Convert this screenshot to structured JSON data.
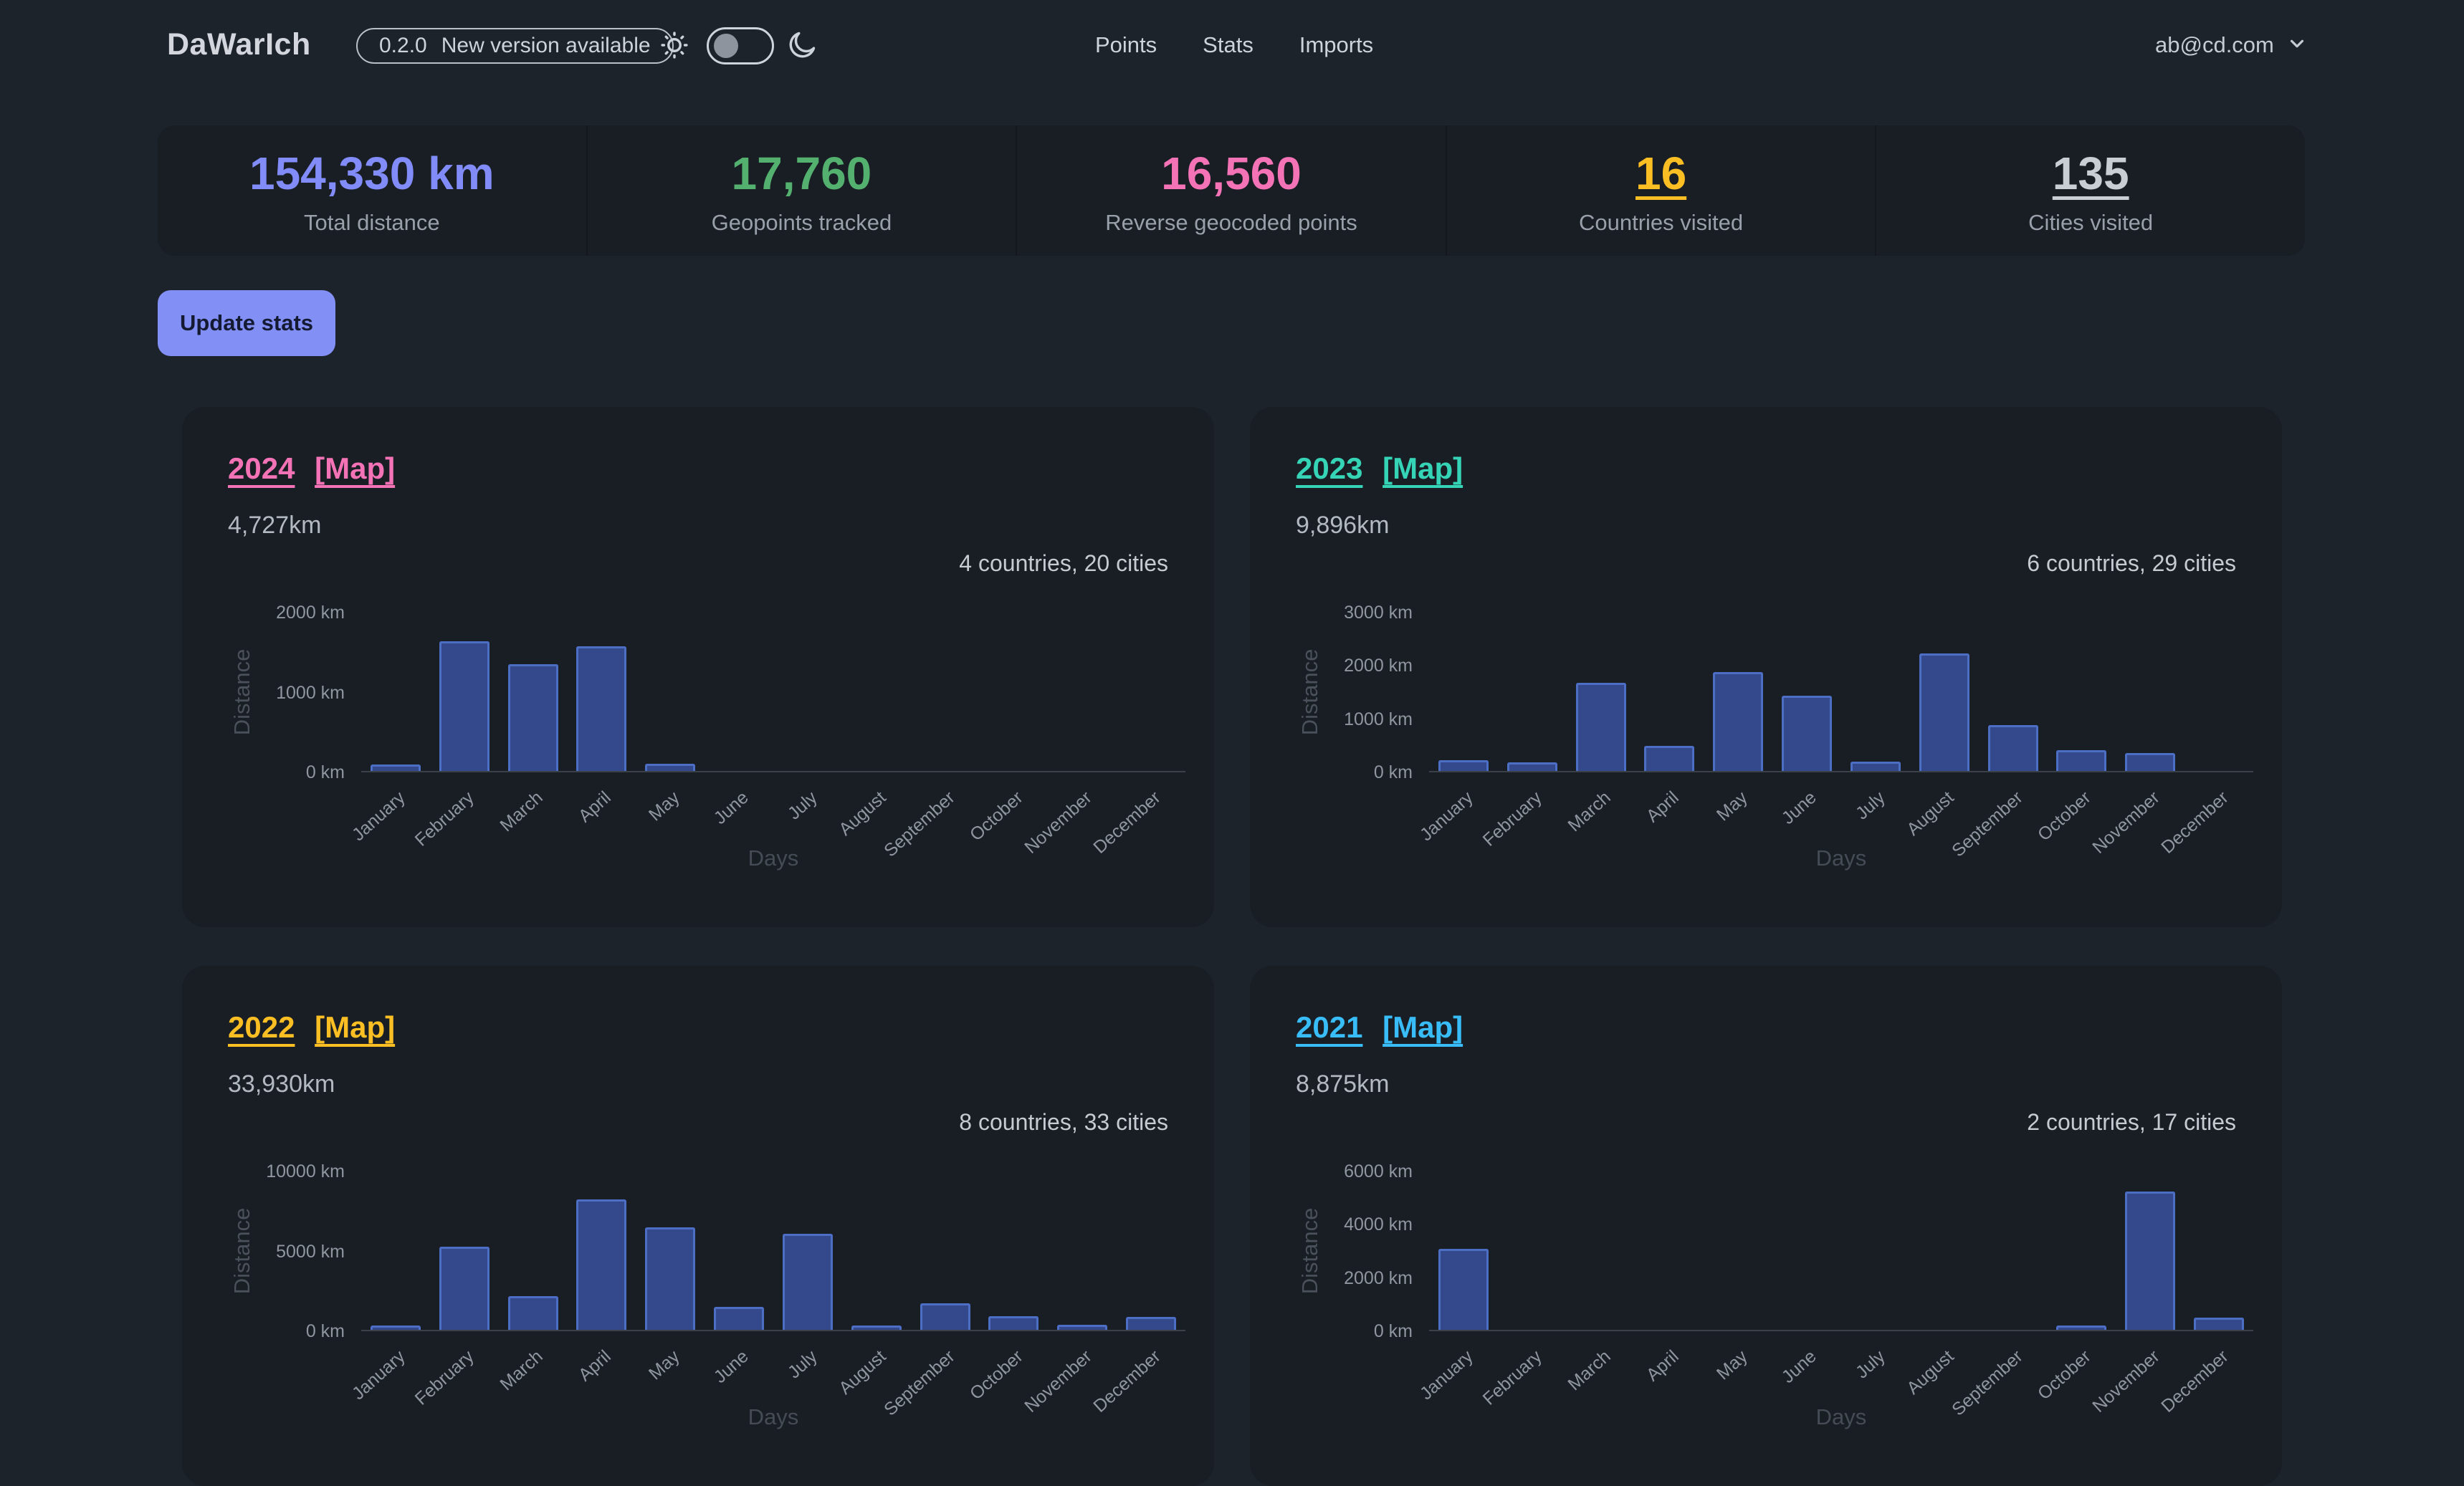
{
  "header": {
    "logo": "DaWarIch",
    "version_badge": {
      "version": "0.2.0",
      "message": "New version available"
    },
    "theme": {
      "sun_icon": "sun",
      "moon_icon": "moon",
      "toggle_state": "off"
    },
    "nav": [
      {
        "label": "Points"
      },
      {
        "label": "Stats"
      },
      {
        "label": "Imports"
      }
    ],
    "user_email": "ab@cd.com",
    "user_menu_icon": "chevron-down"
  },
  "stats": [
    {
      "value": "154,330 km",
      "label": "Total distance",
      "color": "#818cf8",
      "link": false
    },
    {
      "value": "17,760",
      "label": "Geopoints tracked",
      "color": "#53b06e",
      "link": false
    },
    {
      "value": "16,560",
      "label": "Reverse geocoded points",
      "color": "#f472b6",
      "link": false
    },
    {
      "value": "16",
      "label": "Countries visited",
      "color": "#fbbf24",
      "link": true
    },
    {
      "value": "135",
      "label": "Cities visited",
      "color": "#c9ced4",
      "link": true
    }
  ],
  "update_button_label": "Update stats",
  "chart_style": {
    "bar_fill": "#34498b",
    "bar_border": "#4d6ec5"
  },
  "cards": [
    {
      "year": "2024",
      "map_label": "[Map]",
      "accent": "#f472b6",
      "distance": "4,727km",
      "summary": "4 countries, 20 cities",
      "chart_data": {
        "type": "bar",
        "categories": [
          "January",
          "February",
          "March",
          "April",
          "May",
          "June",
          "July",
          "August",
          "September",
          "October",
          "November",
          "December"
        ],
        "values": [
          80,
          1620,
          1340,
          1560,
          90,
          0,
          0,
          0,
          0,
          0,
          0,
          0
        ],
        "ylabel": "Distance",
        "xlabel": "Days",
        "ylim": [
          0,
          2000
        ],
        "yticks": [
          0,
          1000,
          2000
        ],
        "ytick_unit": "km",
        "grid": false,
        "legend": "none"
      }
    },
    {
      "year": "2023",
      "map_label": "[Map]",
      "accent": "#35d4b6",
      "distance": "9,896km",
      "summary": "6 countries, 29 cities",
      "chart_data": {
        "type": "bar",
        "categories": [
          "January",
          "February",
          "March",
          "April",
          "May",
          "June",
          "July",
          "August",
          "September",
          "October",
          "November",
          "December"
        ],
        "values": [
          200,
          160,
          1660,
          470,
          1860,
          1410,
          180,
          2210,
          860,
          390,
          330,
          0
        ],
        "ylabel": "Distance",
        "xlabel": "Days",
        "ylim": [
          0,
          3000
        ],
        "yticks": [
          0,
          1000,
          2000,
          3000
        ],
        "ytick_unit": "km",
        "grid": false,
        "legend": "none"
      }
    },
    {
      "year": "2022",
      "map_label": "[Map]",
      "accent": "#fbbf24",
      "distance": "33,930km",
      "summary": "8 countries, 33 cities",
      "chart_data": {
        "type": "bar",
        "categories": [
          "January",
          "February",
          "March",
          "April",
          "May",
          "June",
          "July",
          "August",
          "September",
          "October",
          "November",
          "December"
        ],
        "values": [
          250,
          5200,
          2100,
          8150,
          6400,
          1450,
          6000,
          250,
          1650,
          850,
          300,
          800
        ],
        "ylabel": "Distance",
        "xlabel": "Days",
        "ylim": [
          0,
          10000
        ],
        "yticks": [
          0,
          5000,
          10000
        ],
        "ytick_unit": "km",
        "grid": false,
        "legend": "none"
      }
    },
    {
      "year": "2021",
      "map_label": "[Map]",
      "accent": "#38bdf8",
      "distance": "8,875km",
      "summary": "2 countries, 17 cities",
      "chart_data": {
        "type": "bar",
        "categories": [
          "January",
          "February",
          "March",
          "April",
          "May",
          "June",
          "July",
          "August",
          "September",
          "October",
          "November",
          "December"
        ],
        "values": [
          3050,
          0,
          0,
          0,
          0,
          0,
          0,
          0,
          0,
          150,
          5200,
          450
        ],
        "ylabel": "Distance",
        "xlabel": "Days",
        "ylim": [
          0,
          6000
        ],
        "yticks": [
          0,
          2000,
          4000,
          6000
        ],
        "ytick_unit": "km",
        "grid": false,
        "legend": "none"
      }
    }
  ]
}
